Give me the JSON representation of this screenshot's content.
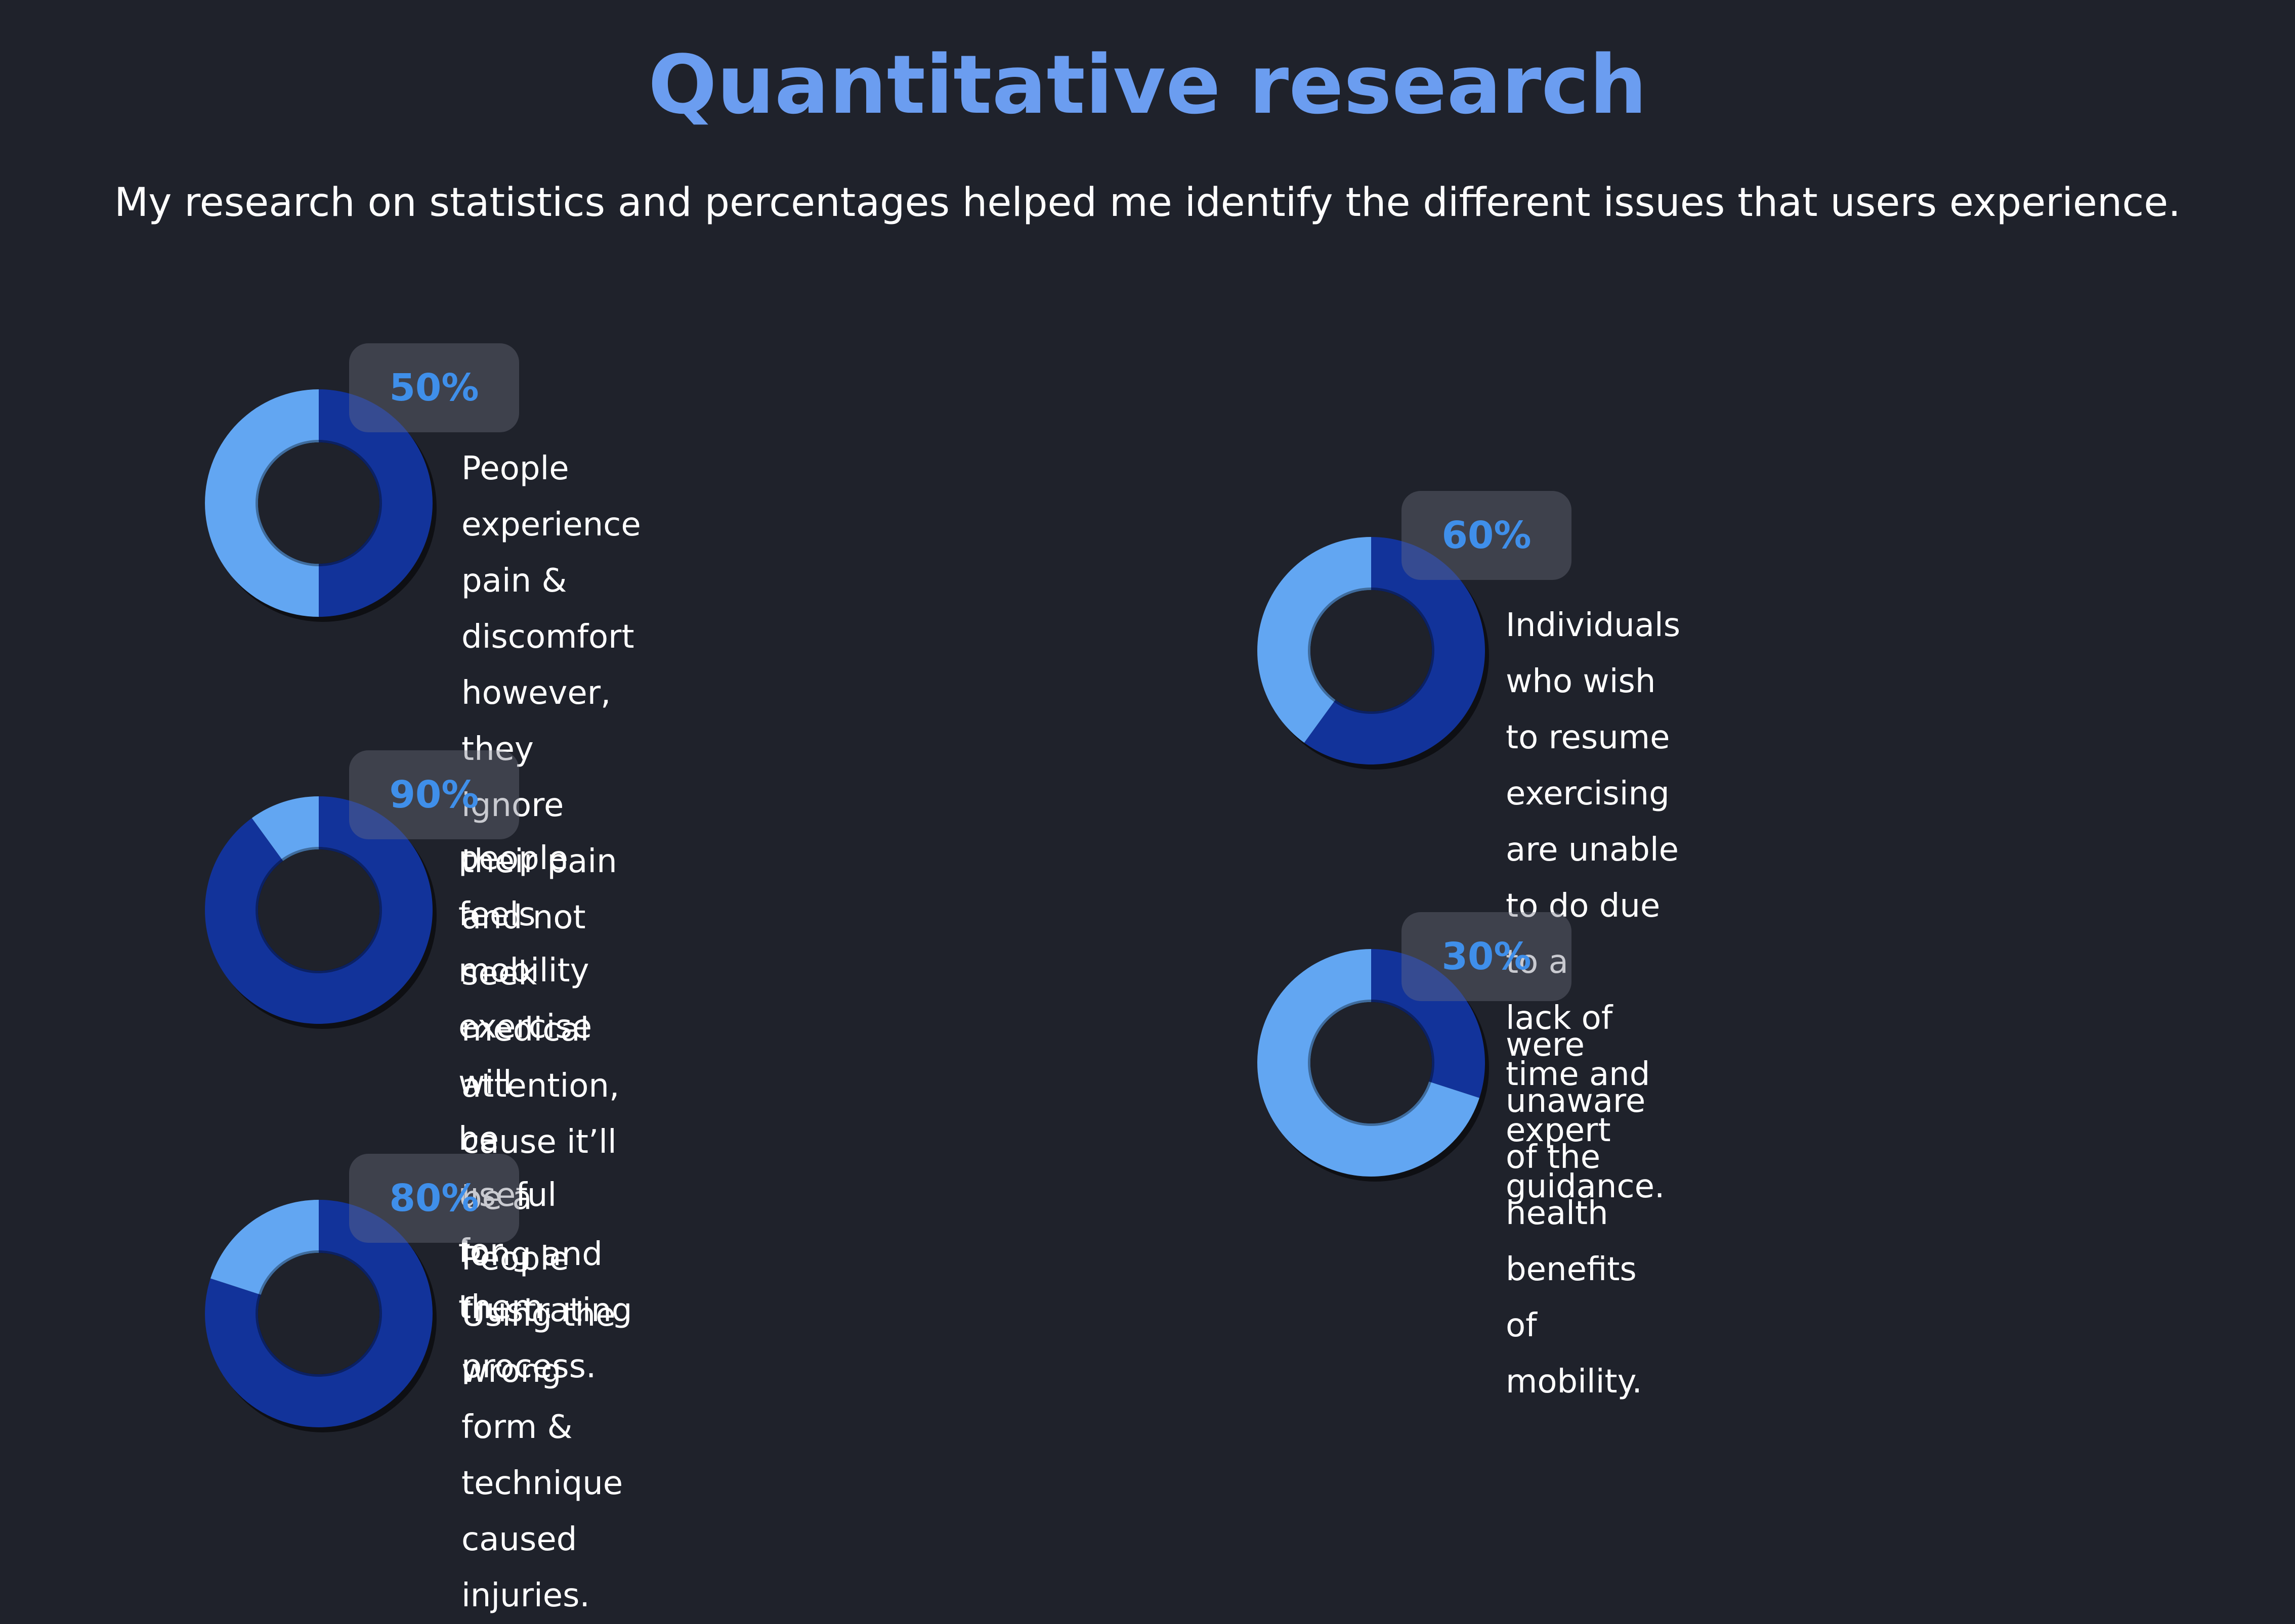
{
  "header": {
    "title": "Quantitative research",
    "subtitle": "My research on statistics and percentages helped me identify the different issues that users experience."
  },
  "colors": {
    "background": "#1f222b",
    "title": "#6b9df0",
    "percent_text": "#3f8fea",
    "primary_segment": "#12339a",
    "secondary_segment": "#62a6f2",
    "hole": "#1f222b"
  },
  "chart_data": [
    {
      "type": "pie",
      "variant": "donut",
      "label": "50%",
      "values": [
        50,
        50
      ],
      "description": "People experience pain & discomfort\nhowever, they ignore their pain and not\nseek medical attention, cause it’ll be a\nlong and frustrating process."
    },
    {
      "type": "pie",
      "variant": "donut",
      "label": "90%",
      "values": [
        90,
        10
      ],
      "description": "people feels mobility exercise will\nbe useful for them."
    },
    {
      "type": "pie",
      "variant": "donut",
      "label": "80%",
      "values": [
        80,
        20
      ],
      "description": "People Using the wrong form &\ntechnique caused injuries."
    },
    {
      "type": "pie",
      "variant": "donut",
      "label": "60%",
      "values": [
        60,
        40
      ],
      "description": "Individuals who wish to resume\nexercising are unable to do  due to a\nlack of time and expert guidance."
    },
    {
      "type": "pie",
      "variant": "donut",
      "label": "30%",
      "values": [
        30,
        70
      ],
      "description": "were unaware of the health benefits of\nmobility."
    }
  ]
}
